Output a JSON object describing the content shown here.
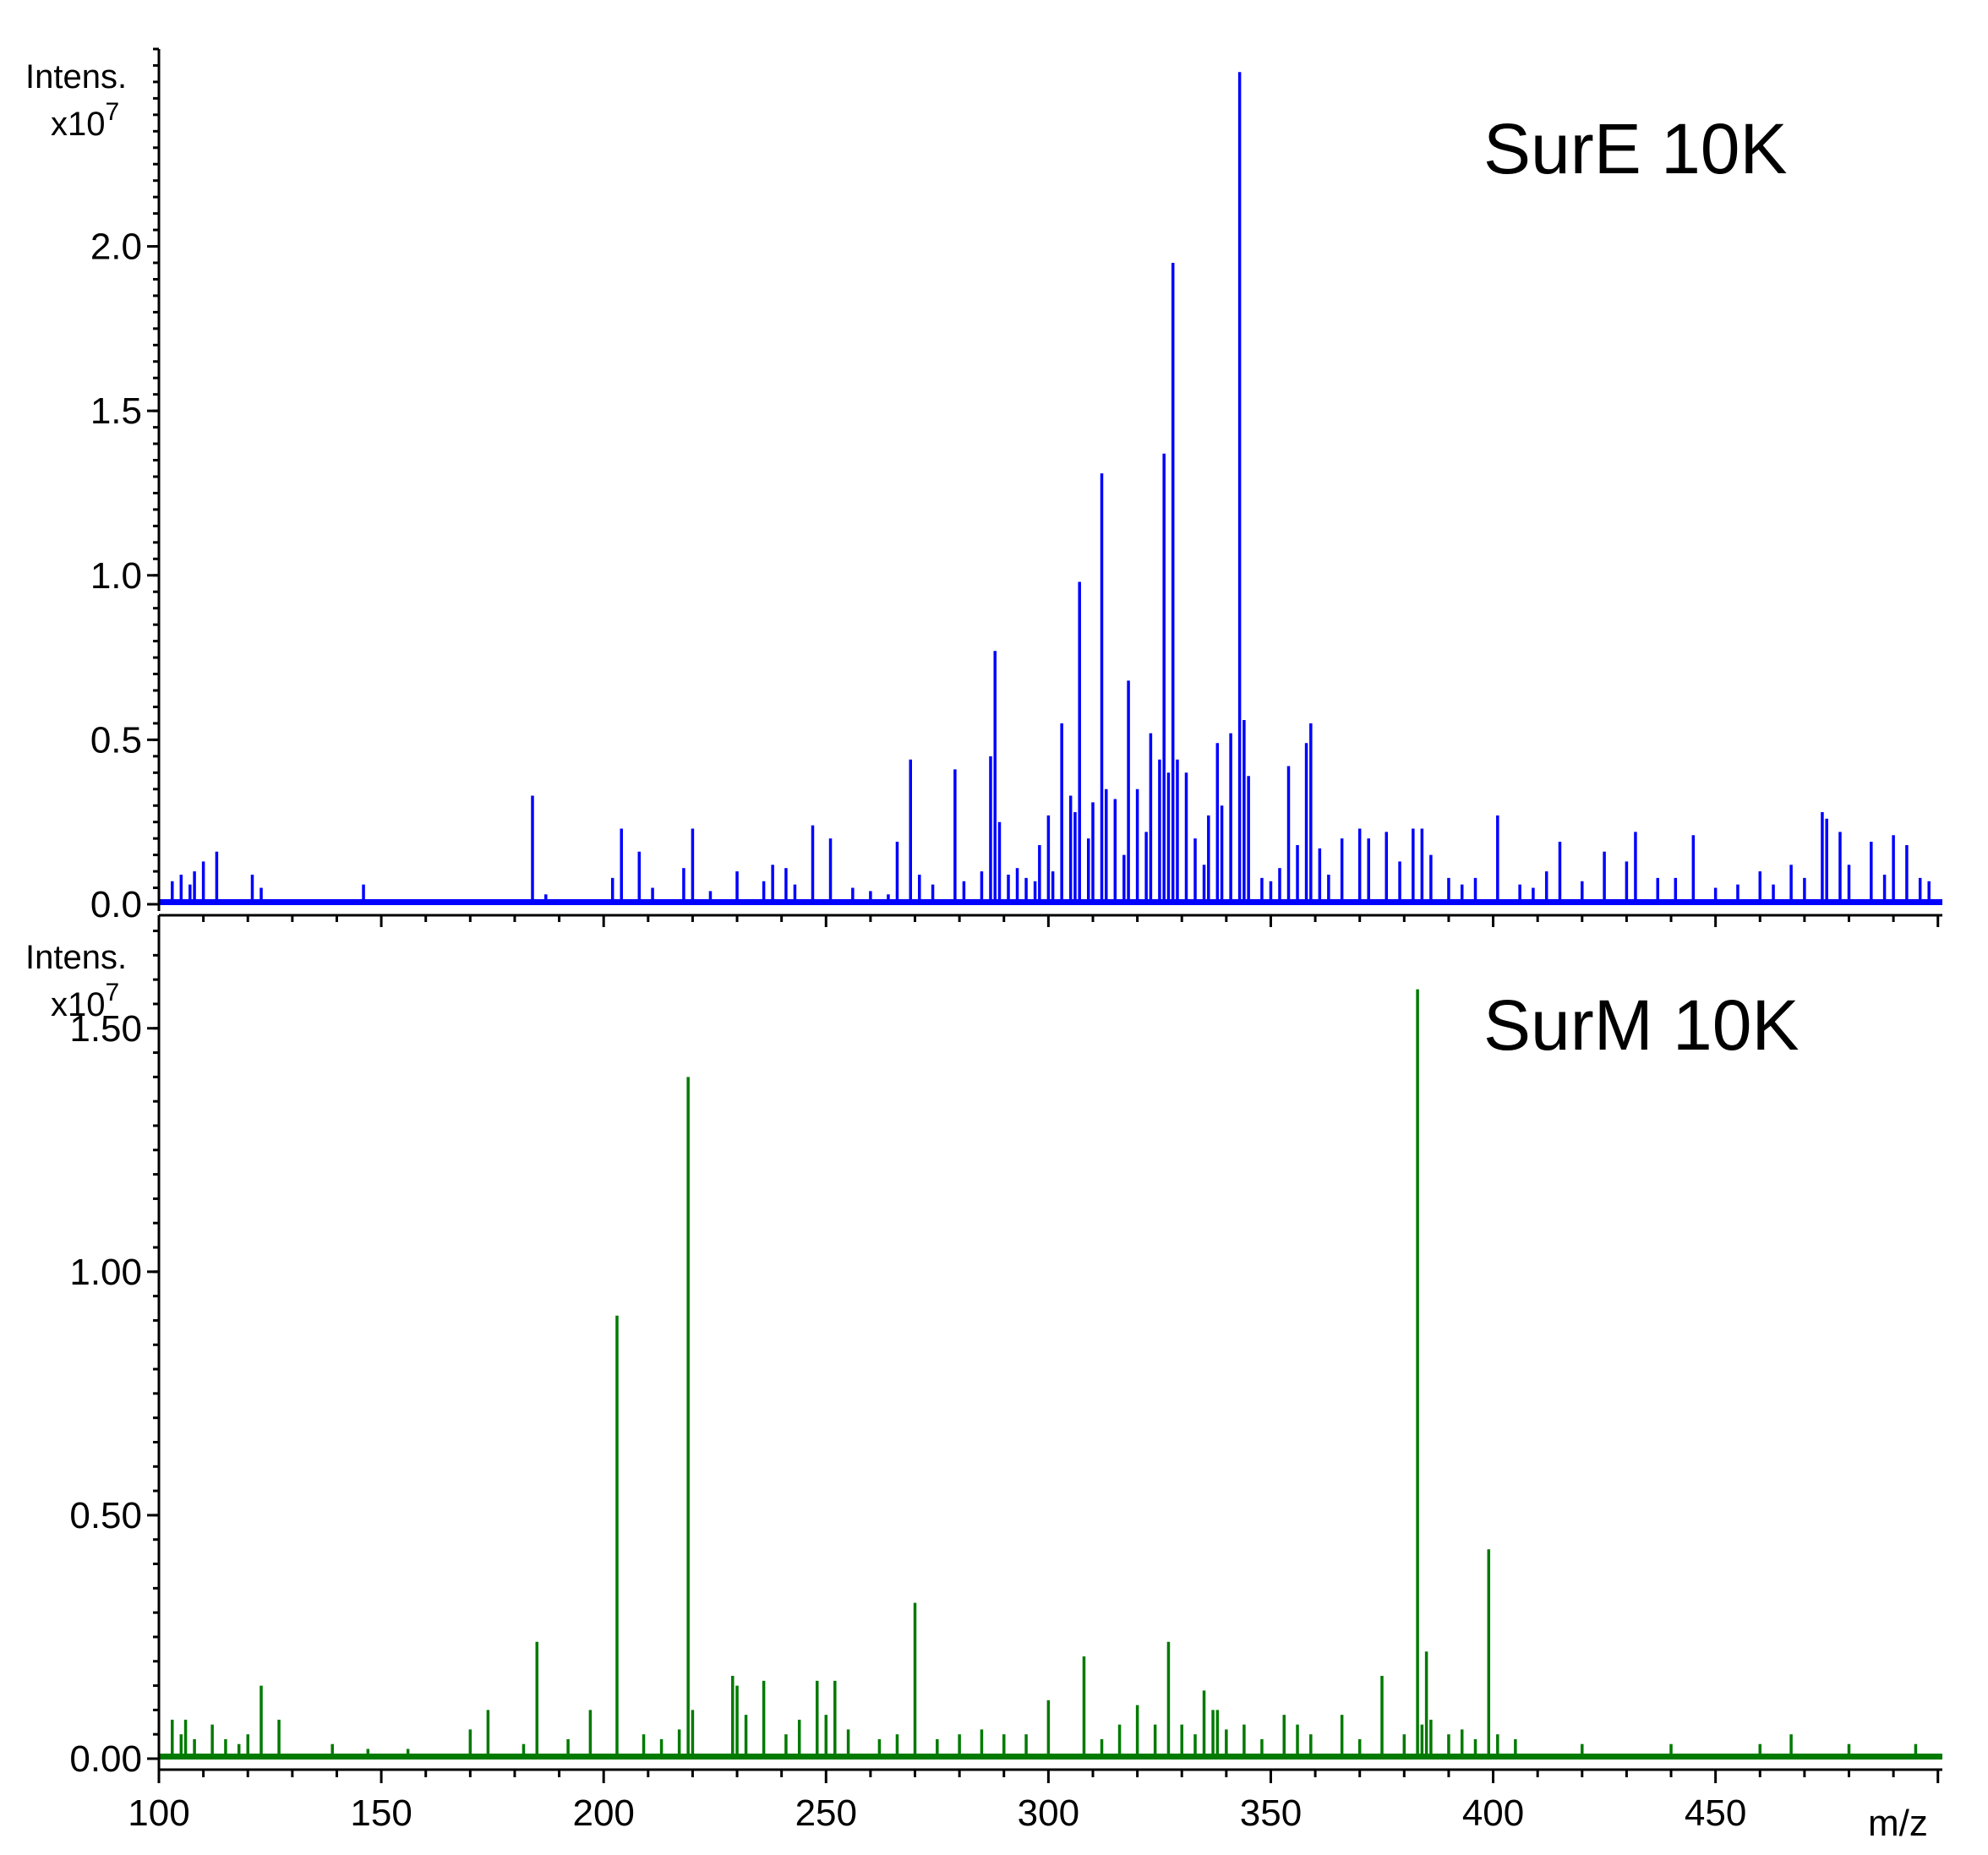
{
  "chart_data": [
    {
      "type": "bar",
      "title": "SurE 10K",
      "ylabel": "Intens.",
      "y_multiplier": "x10",
      "y_multiplier_exp": "7",
      "xlabel": "m/z",
      "xlim": [
        100,
        501
      ],
      "ylim": [
        0,
        2.6
      ],
      "yticks": [
        "0.0",
        "0.5",
        "1.0",
        "1.5",
        "2.0"
      ],
      "color": "#0000ff",
      "x": [
        103,
        105,
        107,
        108,
        110,
        113,
        121,
        123,
        146,
        184,
        187,
        202,
        204,
        208,
        211,
        218,
        220,
        224,
        230,
        236,
        238,
        241,
        243,
        247,
        251,
        256,
        260,
        264,
        266,
        269,
        271,
        274,
        279,
        281,
        285,
        287,
        288,
        289,
        291,
        293,
        295,
        297,
        298,
        300,
        301,
        303,
        305,
        306,
        307,
        309,
        310,
        312,
        313,
        315,
        317,
        318,
        320,
        322,
        323,
        325,
        326,
        327,
        328,
        329,
        331,
        333,
        335,
        336,
        338,
        339,
        341,
        343,
        344,
        345,
        348,
        350,
        352,
        354,
        356,
        358,
        359,
        361,
        363,
        366,
        370,
        372,
        376,
        379,
        382,
        384,
        386,
        390,
        393,
        396,
        401,
        406,
        409,
        412,
        415,
        420,
        425,
        430,
        432,
        437,
        441,
        445,
        450,
        455,
        460,
        463,
        467,
        470,
        474,
        475,
        478,
        480,
        485,
        488,
        490,
        493,
        496,
        498
      ],
      "values": [
        0.07,
        0.09,
        0.06,
        0.1,
        0.13,
        0.16,
        0.09,
        0.05,
        0.06,
        0.33,
        0.03,
        0.08,
        0.23,
        0.16,
        0.05,
        0.11,
        0.23,
        0.04,
        0.1,
        0.07,
        0.12,
        0.11,
        0.06,
        0.24,
        0.2,
        0.05,
        0.04,
        0.03,
        0.19,
        0.44,
        0.09,
        0.06,
        0.41,
        0.07,
        0.1,
        0.45,
        0.77,
        0.25,
        0.09,
        0.11,
        0.08,
        0.07,
        0.18,
        0.27,
        0.1,
        0.55,
        0.33,
        0.28,
        0.98,
        0.2,
        0.31,
        1.31,
        0.35,
        0.32,
        0.15,
        0.68,
        0.35,
        0.22,
        0.52,
        0.44,
        1.37,
        0.4,
        1.95,
        0.44,
        0.4,
        0.2,
        0.12,
        0.27,
        0.49,
        0.3,
        0.52,
        2.53,
        0.56,
        0.39,
        0.08,
        0.07,
        0.11,
        0.42,
        0.18,
        0.49,
        0.55,
        0.17,
        0.09,
        0.2,
        0.23,
        0.2,
        0.22,
        0.13,
        0.23,
        0.23,
        0.15,
        0.08,
        0.06,
        0.08,
        0.27,
        0.06,
        0.05,
        0.1,
        0.19,
        0.07,
        0.16,
        0.13,
        0.22,
        0.08,
        0.08,
        0.21,
        0.05,
        0.06,
        0.1,
        0.06,
        0.12,
        0.08,
        0.28,
        0.26,
        0.22,
        0.12,
        0.19,
        0.09,
        0.21,
        0.18,
        0.08,
        0.07
      ]
    },
    {
      "type": "bar",
      "title": "SurM 10K",
      "ylabel": "Intens.",
      "y_multiplier": "x10",
      "y_multiplier_exp": "7",
      "xlabel": "m/z",
      "xlim": [
        100,
        501
      ],
      "ylim": [
        0,
        1.72
      ],
      "yticks": [
        "0.00",
        "0.50",
        "1.00",
        "1.50"
      ],
      "xticks": [
        "100",
        "150",
        "200",
        "250",
        "300",
        "350",
        "400",
        "450"
      ],
      "color": "#007a00",
      "x": [
        103,
        105,
        106,
        108,
        112,
        115,
        118,
        120,
        123,
        127,
        139,
        147,
        156,
        170,
        174,
        182,
        185,
        192,
        197,
        203,
        209,
        213,
        217,
        219,
        220,
        229,
        230,
        232,
        236,
        241,
        244,
        248,
        250,
        252,
        255,
        262,
        266,
        270,
        275,
        280,
        285,
        290,
        295,
        300,
        308,
        312,
        316,
        320,
        324,
        327,
        330,
        333,
        335,
        337,
        338,
        340,
        344,
        348,
        353,
        356,
        359,
        366,
        370,
        375,
        380,
        383,
        384,
        385,
        386,
        390,
        393,
        396,
        399,
        401,
        405,
        420,
        440,
        460,
        467,
        480,
        495
      ],
      "values": [
        0.08,
        0.05,
        0.08,
        0.04,
        0.07,
        0.04,
        0.03,
        0.05,
        0.15,
        0.08,
        0.03,
        0.02,
        0.02,
        0.06,
        0.1,
        0.03,
        0.24,
        0.04,
        0.1,
        0.91,
        0.05,
        0.04,
        0.06,
        1.4,
        0.1,
        0.17,
        0.15,
        0.09,
        0.16,
        0.05,
        0.08,
        0.16,
        0.09,
        0.16,
        0.06,
        0.04,
        0.05,
        0.32,
        0.04,
        0.05,
        0.06,
        0.05,
        0.05,
        0.12,
        0.21,
        0.04,
        0.07,
        0.11,
        0.07,
        0.24,
        0.07,
        0.05,
        0.14,
        0.1,
        0.1,
        0.06,
        0.07,
        0.04,
        0.09,
        0.07,
        0.05,
        0.09,
        0.04,
        0.17,
        0.05,
        1.58,
        0.07,
        0.22,
        0.08,
        0.05,
        0.06,
        0.04,
        0.43,
        0.05,
        0.04,
        0.03,
        0.03,
        0.03,
        0.05,
        0.03,
        0.03
      ]
    }
  ]
}
